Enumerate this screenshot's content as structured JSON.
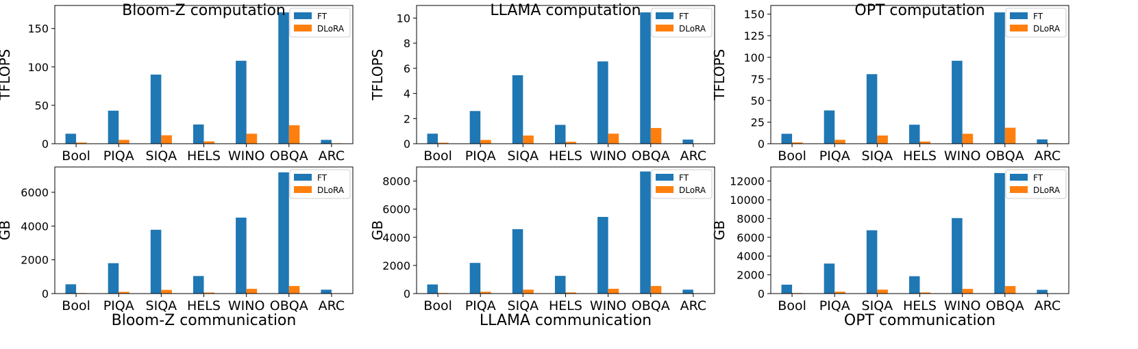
{
  "legend_labels": {
    "ft": "FT",
    "dlora": "DLoRA"
  },
  "colors": {
    "ft": "#1f77b4",
    "dlora": "#ff7f0e"
  },
  "chart_data": [
    {
      "id": "bloomz-computation",
      "type": "bar",
      "title": "Bloom-Z computation",
      "xlabel": "",
      "ylabel": "TFLOPS",
      "categories": [
        "Bool",
        "PIQA",
        "SIQA",
        "HELS",
        "WINO",
        "OBQA",
        "ARC"
      ],
      "ylim": [
        0,
        180
      ],
      "yticks": [
        0,
        50,
        100,
        150
      ],
      "legend": "top-right",
      "series": [
        {
          "name": "FT",
          "values": [
            13,
            43,
            90,
            25,
            108,
            171,
            5
          ]
        },
        {
          "name": "DLoRA",
          "values": [
            1.5,
            5,
            11,
            3,
            13,
            24,
            0.6
          ]
        }
      ]
    },
    {
      "id": "llama-computation",
      "type": "bar",
      "title": "LLAMA computation",
      "xlabel": "",
      "ylabel": "TFLOPS",
      "categories": [
        "Bool",
        "PIQA",
        "SIQA",
        "HELS",
        "WINO",
        "OBQA",
        "ARC"
      ],
      "ylim": [
        0,
        11
      ],
      "yticks": [
        0,
        2,
        4,
        6,
        8,
        10
      ],
      "legend": "top-right",
      "series": [
        {
          "name": "FT",
          "values": [
            0.8,
            2.6,
            5.45,
            1.5,
            6.55,
            10.45,
            0.33
          ]
        },
        {
          "name": "DLoRA",
          "values": [
            0.08,
            0.3,
            0.65,
            0.15,
            0.8,
            1.25,
            0.02
          ]
        }
      ]
    },
    {
      "id": "opt-computation",
      "type": "bar",
      "title": "OPT computation",
      "xlabel": "",
      "ylabel": "TFLOPS",
      "categories": [
        "Bool",
        "PIQA",
        "SIQA",
        "HELS",
        "WINO",
        "OBQA",
        "ARC"
      ],
      "ylim": [
        0,
        160
      ],
      "yticks": [
        0,
        25,
        50,
        75,
        100,
        125,
        150
      ],
      "legend": "top-right",
      "series": [
        {
          "name": "FT",
          "values": [
            11.5,
            38.5,
            80.5,
            22,
            96,
            152,
            5
          ]
        },
        {
          "name": "DLoRA",
          "values": [
            1.5,
            4.5,
            9.5,
            2.5,
            11.5,
            18.5,
            0.5
          ]
        }
      ]
    },
    {
      "id": "bloomz-communication",
      "type": "bar",
      "title": "",
      "xlabel": "Bloom-Z communication",
      "ylabel": "GB",
      "categories": [
        "Bool",
        "PIQA",
        "SIQA",
        "HELS",
        "WINO",
        "OBQA",
        "ARC"
      ],
      "ylim": [
        0,
        7500
      ],
      "yticks": [
        0,
        2000,
        4000,
        6000
      ],
      "legend": "top-right",
      "series": [
        {
          "name": "FT",
          "values": [
            550,
            1800,
            3780,
            1040,
            4500,
            7180,
            230
          ]
        },
        {
          "name": "DLoRA",
          "values": [
            30,
            100,
            220,
            60,
            280,
            450,
            10
          ]
        }
      ]
    },
    {
      "id": "llama-communication",
      "type": "bar",
      "title": "",
      "xlabel": "LLAMA communication",
      "ylabel": "GB",
      "categories": [
        "Bool",
        "PIQA",
        "SIQA",
        "HELS",
        "WINO",
        "OBQA",
        "ARC"
      ],
      "ylim": [
        0,
        9000
      ],
      "yticks": [
        0,
        2000,
        4000,
        6000,
        8000
      ],
      "legend": "top-right",
      "series": [
        {
          "name": "FT",
          "values": [
            650,
            2180,
            4580,
            1260,
            5450,
            8680,
            280
          ]
        },
        {
          "name": "DLoRA",
          "values": [
            40,
            130,
            280,
            80,
            340,
            540,
            15
          ]
        }
      ]
    },
    {
      "id": "opt-communication",
      "type": "bar",
      "title": "",
      "xlabel": "OPT communication",
      "ylabel": "GB",
      "categories": [
        "Bool",
        "PIQA",
        "SIQA",
        "HELS",
        "WINO",
        "OBQA",
        "ARC"
      ],
      "ylim": [
        0,
        13500
      ],
      "yticks": [
        0,
        2000,
        4000,
        6000,
        8000,
        10000,
        12000
      ],
      "legend": "top-right",
      "series": [
        {
          "name": "FT",
          "values": [
            950,
            3200,
            6750,
            1850,
            8050,
            12850,
            400
          ]
        },
        {
          "name": "DLoRA",
          "values": [
            60,
            200,
            420,
            120,
            500,
            800,
            25
          ]
        }
      ]
    }
  ]
}
